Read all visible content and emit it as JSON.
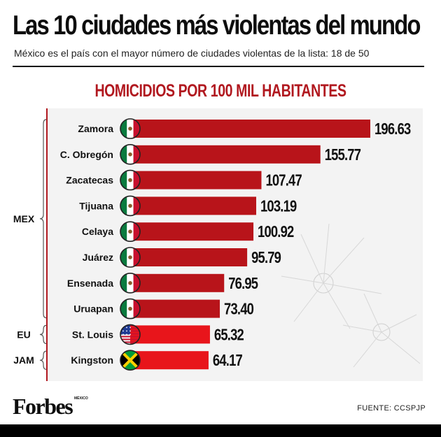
{
  "header": {
    "title": "Las 10 ciudades más violentas del mundo",
    "subtitle": "México es el país con el mayor número de ciudades violentas de la lista: 18 de 50"
  },
  "chart_data": {
    "type": "bar",
    "orientation": "horizontal",
    "title": "HOMICIDIOS POR 100 MIL HABITANTES",
    "categories": [
      "Zamora",
      "C. Obregón",
      "Zacatecas",
      "Tijuana",
      "Celaya",
      "Juárez",
      "Ensenada",
      "Uruapan",
      "St. Louis",
      "Kingston"
    ],
    "values": [
      196.63,
      155.77,
      107.47,
      103.19,
      100.92,
      95.79,
      76.95,
      73.4,
      65.32,
      64.17
    ],
    "value_labels": [
      "196.63",
      "155.77",
      "107.47",
      "103.19",
      "100.92",
      "95.79",
      "76.95",
      "73.40",
      "65.32",
      "64.17"
    ],
    "flags": [
      "mexico",
      "mexico",
      "mexico",
      "mexico",
      "mexico",
      "mexico",
      "mexico",
      "mexico",
      "usa",
      "jamaica"
    ],
    "groups": [
      {
        "label": "MEX",
        "start": 0,
        "end": 7
      },
      {
        "label": "EU",
        "start": 8,
        "end": 8
      },
      {
        "label": "JAM",
        "start": 9,
        "end": 9
      }
    ],
    "xlim": [
      0,
      200
    ],
    "grid": false,
    "colors": {
      "mexico": "#b8141a",
      "other": "#e8151b"
    }
  },
  "footer": {
    "logo": "Forbes",
    "logo_sub": "MÉXICO",
    "source": "FUENTE: CCSPJP"
  }
}
